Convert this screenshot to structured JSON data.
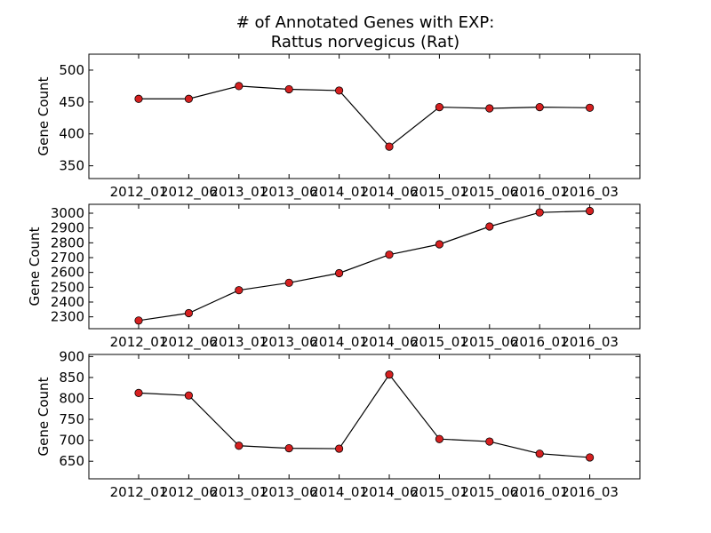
{
  "chart_data": {
    "title_lines": [
      "# of Annotated Genes with EXP:",
      "Rattus norvegicus (Rat)"
    ],
    "type": "line",
    "marker_color": "#d62020",
    "line_color": "#000000",
    "categories": [
      "2012_01",
      "2012_06",
      "2013_01",
      "2013_06",
      "2014_01",
      "2014_06",
      "2015_01",
      "2015_06",
      "2016_01",
      "2016_03"
    ],
    "panels": [
      {
        "ylabel": "Gene Count",
        "ylim": [
          330,
          525
        ],
        "yticks": [
          350,
          400,
          450,
          500
        ],
        "values": [
          455,
          455,
          475,
          470,
          468,
          380,
          442,
          440,
          442,
          441
        ]
      },
      {
        "ylabel": "Gene Count",
        "ylim": [
          2220,
          3060
        ],
        "yticks": [
          2300,
          2400,
          2500,
          2600,
          2700,
          2800,
          2900,
          3000
        ],
        "values": [
          2275,
          2325,
          2480,
          2530,
          2595,
          2720,
          2790,
          2910,
          3005,
          3015
        ]
      },
      {
        "ylabel": "Gene Count",
        "ylim": [
          608,
          905
        ],
        "yticks": [
          650,
          700,
          750,
          800,
          850,
          900
        ],
        "values": [
          813,
          807,
          687,
          681,
          680,
          857,
          703,
          697,
          668,
          659
        ]
      }
    ]
  }
}
